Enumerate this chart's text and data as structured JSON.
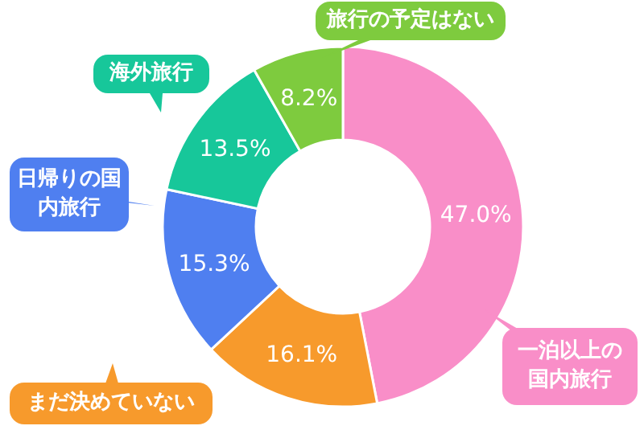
{
  "chart_data": {
    "type": "donut",
    "categories": [
      "一泊以上の国内旅行",
      "まだ決めていない",
      "日帰りの国内旅行",
      "海外旅行",
      "旅行の予定はない"
    ],
    "values": [
      47.0,
      16.1,
      15.3,
      13.5,
      8.2
    ],
    "colors": [
      "#f98ec8",
      "#f79a2c",
      "#4f7ff0",
      "#17c79a",
      "#7ecb3e"
    ],
    "value_labels": [
      "47.0%",
      "16.1%",
      "15.3%",
      "13.5%",
      "8.2%"
    ]
  }
}
